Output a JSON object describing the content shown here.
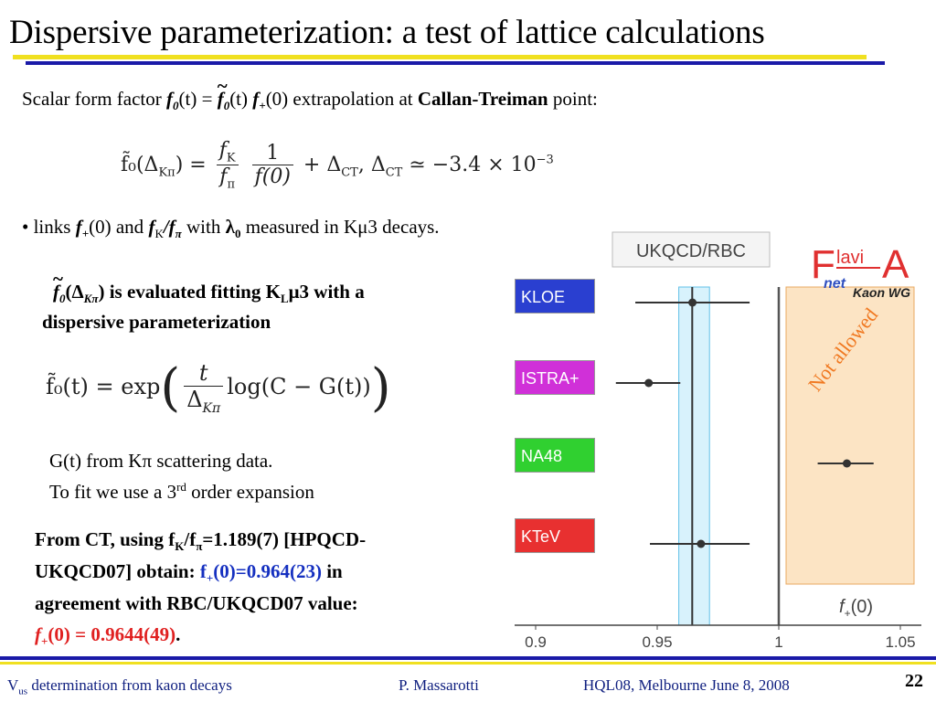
{
  "slide": {
    "title": "Dispersive parameterization: a test of lattice calculations",
    "intro": {
      "prefix": "Scalar form factor ",
      "f0t": "(t) = ",
      "f0tilde_t": "(t) ",
      "fplus0": "(0) extrapolation at ",
      "ct": "Callan-Treiman",
      "suffix": " point:"
    },
    "bullet": {
      "text1": "• links ",
      "text2": "(0) and ",
      "text3": " with ",
      "text4": " measured in K",
      "text5": "3 decays."
    },
    "eval": {
      "line1_rest": ") is evaluated fitting K",
      "line1_end": "3 with a",
      "line2": "dispersive parameterization"
    },
    "gt": {
      "line1": "G(t) from Kπ scattering data.",
      "line2a": "To fit we use a 3",
      "line2sup": "rd",
      "line2b": " order expansion"
    },
    "ct_result": {
      "l1a": "From CT, using f",
      "l1b": "/f",
      "l1c": "=1.189(7) [HPQCD-",
      "l2a": "UKQCD07] obtain: ",
      "l2val_a": "f",
      "l2val_b": "(0)=0.964(23)",
      "l2b": " in",
      "l3": "agreement with RBC/UKQCD07 value:",
      "l4a": "f",
      "l4b": "(0) = 0.9644(49)",
      "l4c": "."
    },
    "eq1": {
      "lhs": "f̃₀(Δ",
      "lhs_sub": "Kπ",
      "lhs_end": ") = ",
      "fk": "f",
      "fk_sub": "K",
      "fpi": "f",
      "fpi_sub": "π",
      "one": "1",
      "f00": "f(0)",
      "plus": " + Δ",
      "ct_sub": "CT",
      "comma": ",    Δ",
      "ct_sub2": "CT",
      "approx": " ≃ −3.4 × 10",
      "exp": "−3"
    },
    "eq2": {
      "lhs": "f̃₀(t) = exp",
      "t": "t",
      "delta": "Δ",
      "delta_sub": "Kπ",
      "log": "log(C − G(t))"
    }
  },
  "chart": {
    "header": "UKQCD/RBC",
    "logo_main": "lavi",
    "logo_sub": "Kaon WG",
    "logo_net": "net",
    "not_allowed": "Not allowed",
    "xlabel": "f",
    "xlabel_sub": "+",
    "xlabel_end": "(0)",
    "colors": {
      "kloe": "#2a3fd0",
      "istra": "#d030d8",
      "na48": "#30d030",
      "ktev": "#e83030",
      "band": "#d8f2fc",
      "notallowed": "#fce4c4"
    }
  },
  "chart_data": {
    "type": "scatter",
    "title": "UKQCD/RBC",
    "xlabel": "f+(0)",
    "xlim": [
      0.9,
      1.05
    ],
    "xticks": [
      "0.9",
      "0.95",
      "1",
      "1.05"
    ],
    "categories": [
      "KLOE",
      "ISTRA+",
      "NA48",
      "KTeV"
    ],
    "points": [
      {
        "name": "KLOE",
        "x": 0.9645,
        "err_lo": 0.941,
        "err_hi": 0.988
      },
      {
        "name": "ISTRA+",
        "x": 0.9465,
        "err_lo": 0.933,
        "err_hi": 0.9595
      },
      {
        "name": "NA48",
        "x": 1.028,
        "err_lo": 1.016,
        "err_hi": 1.039
      },
      {
        "name": "KTeV",
        "x": 0.968,
        "err_lo": 0.947,
        "err_hi": 0.988
      }
    ],
    "band": {
      "lo": 0.96,
      "hi": 0.97
    },
    "line": {
      "x": 0.9644
    },
    "limit": {
      "x": 1.0
    }
  },
  "footer": {
    "left_a": "V",
    "left_sub": "us",
    "left_b": " determination from kaon decays",
    "center": "P. Massarotti",
    "right": "HQL08, Melbourne June 8, 2008",
    "page": "22"
  }
}
